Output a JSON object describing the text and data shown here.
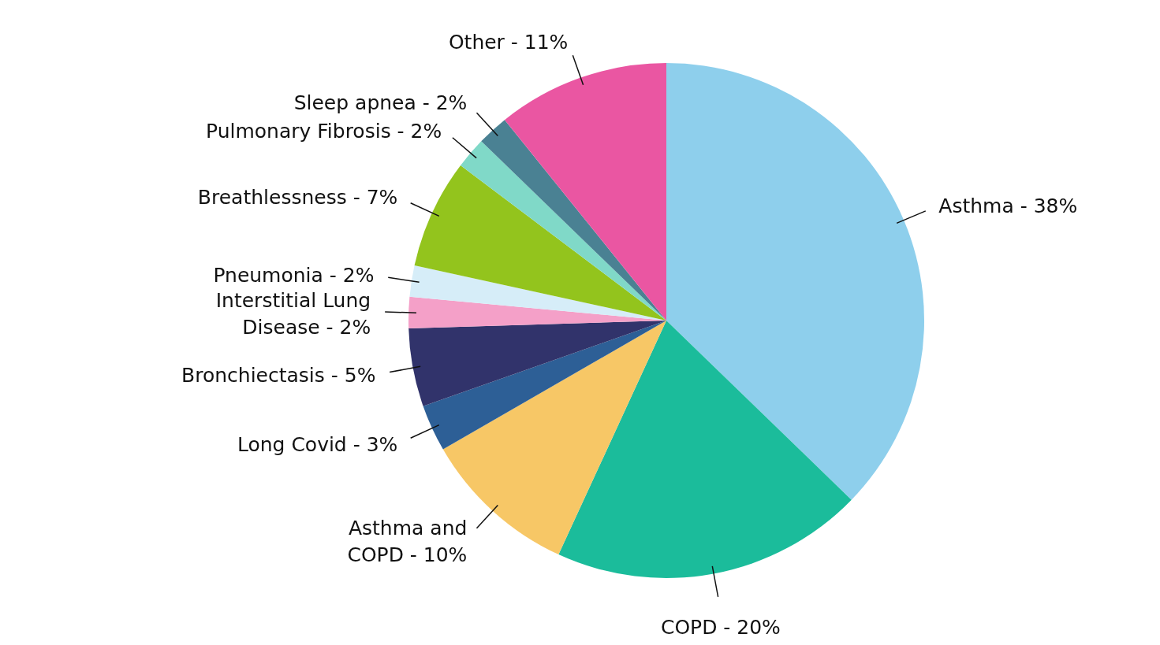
{
  "chart_data": {
    "type": "pie",
    "categories": [
      "Asthma - 38%",
      "COPD - 20%",
      "Asthma and COPD - 10%",
      "Long Covid - 3%",
      "Bronchiectasis - 5%",
      "Interstitial Lung Disease - 2%",
      "Pneumonia - 2%",
      "Breathlessness - 7%",
      "Pulmonary Fibrosis - 2%",
      "Sleep apnea - 2%",
      "Other - 11%"
    ],
    "values": [
      38,
      20,
      10,
      3,
      5,
      2,
      2,
      7,
      2,
      2,
      11
    ],
    "colors": [
      "#8ecfec",
      "#1bbc9b",
      "#f7c766",
      "#2d5f96",
      "#31336b",
      "#f4a0c8",
      "#d6edf8",
      "#93c41d",
      "#80d9c8",
      "#4a8193",
      "#ea56a2"
    ],
    "legend": false
  }
}
